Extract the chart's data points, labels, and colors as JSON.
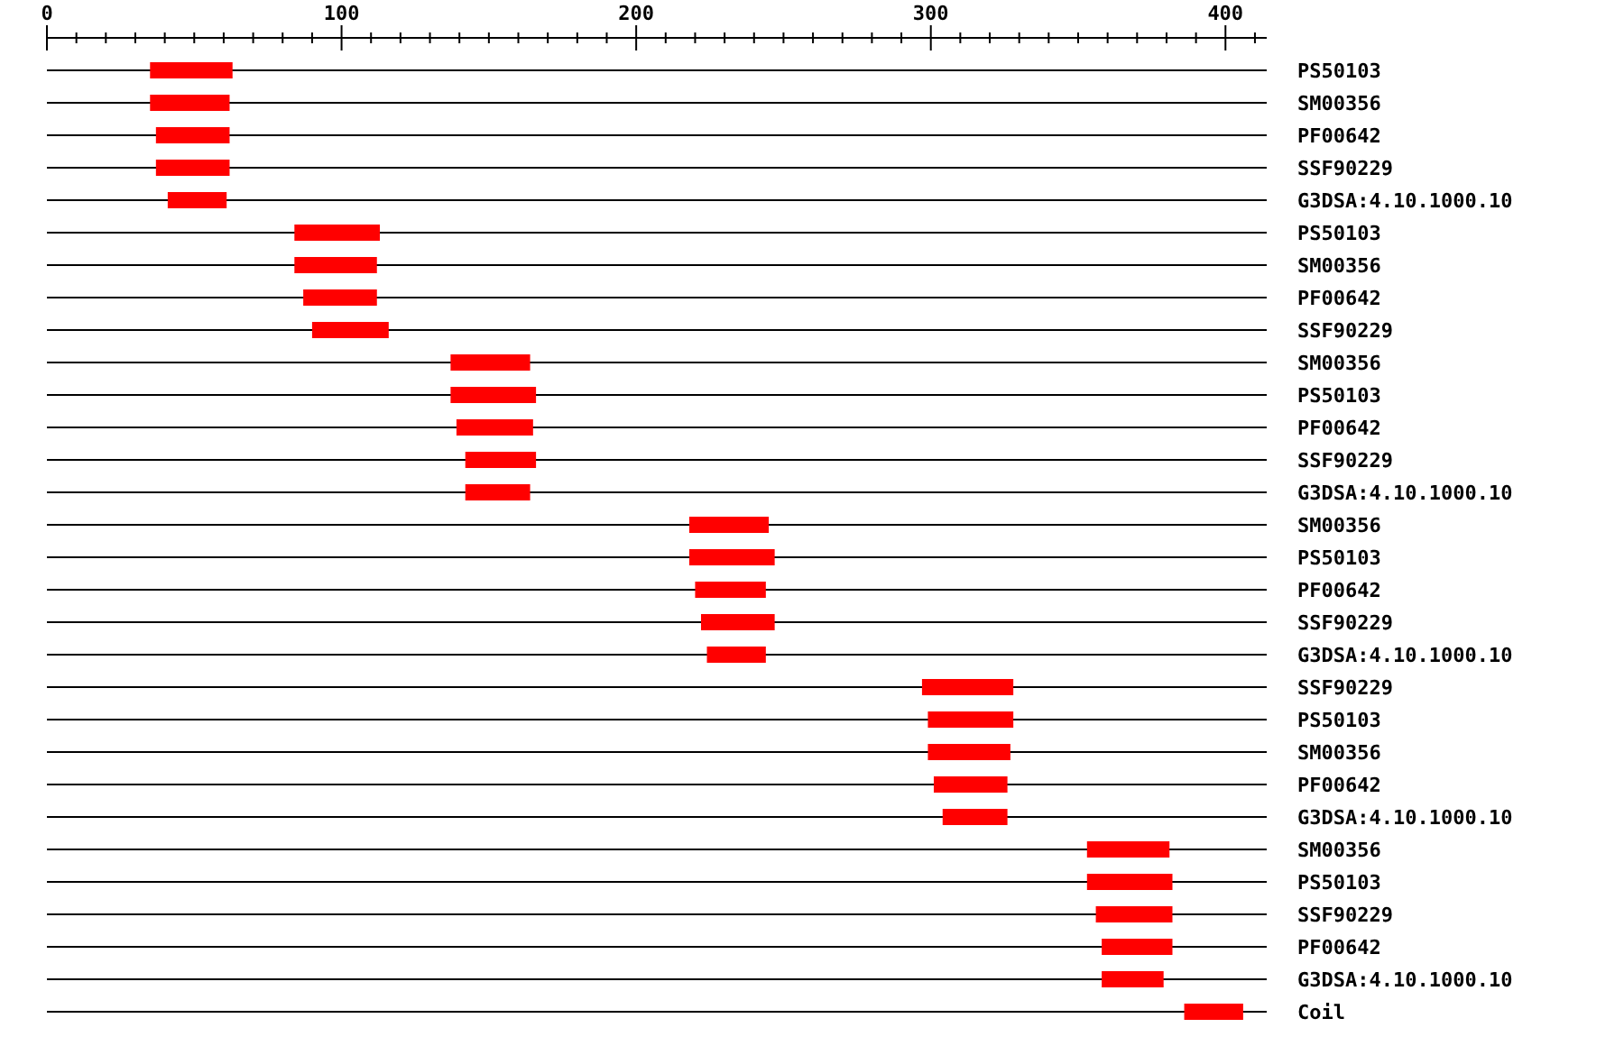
{
  "chart_data": {
    "type": "bar",
    "orientation": "horizontal",
    "categories": [
      "PS50103",
      "SM00356",
      "PF00642",
      "SSF90229",
      "G3DSA:4.10.1000.10",
      "PS50103",
      "SM00356",
      "PF00642",
      "SSF90229",
      "SM00356",
      "PS50103",
      "PF00642",
      "SSF90229",
      "G3DSA:4.10.1000.10",
      "SM00356",
      "PS50103",
      "PF00642",
      "SSF90229",
      "G3DSA:4.10.1000.10",
      "SSF90229",
      "PS50103",
      "SM00356",
      "PF00642",
      "G3DSA:4.10.1000.10",
      "SM00356",
      "PS50103",
      "SSF90229",
      "PF00642",
      "G3DSA:4.10.1000.10",
      "Coil"
    ],
    "base": [
      35,
      35,
      37,
      37,
      41,
      84,
      84,
      87,
      90,
      137,
      137,
      139,
      142,
      142,
      218,
      218,
      220,
      222,
      224,
      297,
      299,
      299,
      301,
      304,
      353,
      353,
      356,
      358,
      358,
      386
    ],
    "values": [
      28,
      27,
      25,
      25,
      20,
      29,
      28,
      25,
      26,
      27,
      29,
      26,
      24,
      22,
      27,
      29,
      24,
      25,
      20,
      31,
      29,
      28,
      25,
      22,
      28,
      29,
      26,
      24,
      21,
      20
    ],
    "color": "#ff0000",
    "grid": "y",
    "xlim": [
      0,
      414
    ],
    "xticks": [
      0,
      {
        "value": 10,
        "label": null
      },
      {
        "value": 20,
        "label": null
      },
      {
        "value": 30,
        "label": null
      },
      {
        "value": 40,
        "label": null
      },
      {
        "value": 50,
        "label": null
      },
      {
        "value": 60,
        "label": null
      },
      {
        "value": 70,
        "label": null
      },
      {
        "value": 80,
        "label": null
      },
      {
        "value": 90,
        "label": null
      },
      100,
      {
        "value": 110,
        "label": null
      },
      {
        "value": 120,
        "label": null
      },
      {
        "value": 130,
        "label": null
      },
      {
        "value": 140,
        "label": null
      },
      {
        "value": 150,
        "label": null
      },
      {
        "value": 160,
        "label": null
      },
      {
        "value": 170,
        "label": null
      },
      {
        "value": 180,
        "label": null
      },
      {
        "value": 190,
        "label": null
      },
      200,
      {
        "value": 210,
        "label": null
      },
      {
        "value": 220,
        "label": null
      },
      {
        "value": 230,
        "label": null
      },
      {
        "value": 240,
        "label": null
      },
      {
        "value": 250,
        "label": null
      },
      {
        "value": 260,
        "label": null
      },
      {
        "value": 270,
        "label": null
      },
      {
        "value": 280,
        "label": null
      },
      {
        "value": 290,
        "label": null
      },
      300,
      {
        "value": 310,
        "label": null
      },
      {
        "value": 320,
        "label": null
      },
      {
        "value": 330,
        "label": null
      },
      {
        "value": 340,
        "label": null
      },
      {
        "value": 350,
        "label": null
      },
      {
        "value": 360,
        "label": null
      },
      {
        "value": 370,
        "label": null
      },
      {
        "value": 380,
        "label": null
      },
      {
        "value": 390,
        "label": null
      },
      400,
      {
        "value": 410,
        "label": null
      }
    ]
  }
}
